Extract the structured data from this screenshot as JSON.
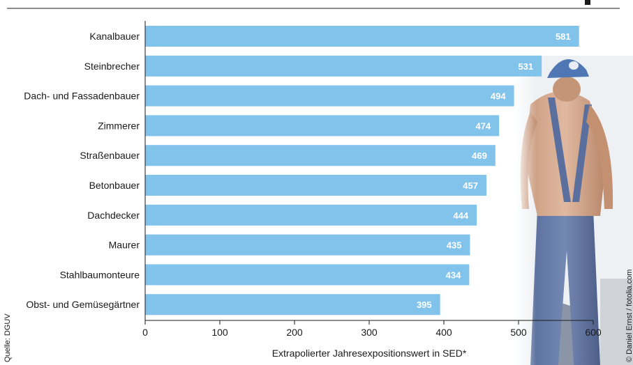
{
  "chart_data": {
    "type": "bar",
    "orientation": "horizontal",
    "categories": [
      "Kanalbauer",
      "Steinbrecher",
      "Dach- und Fassadenbauer",
      "Zimmerer",
      "Straßenbauer",
      "Betonbauer",
      "Dachdecker",
      "Maurer",
      "Stahlbaumonteure",
      "Obst- und Gemüsegärtner"
    ],
    "values": [
      581,
      531,
      494,
      474,
      469,
      457,
      444,
      435,
      434,
      395
    ],
    "xlabel": "Extrapolierter Jahresexpositionswert in SED*",
    "xlim": [
      0,
      600
    ],
    "xticks": [
      0,
      100,
      200,
      300,
      400,
      500,
      600
    ],
    "grid": false,
    "bar_color": "#82c3ec",
    "value_label_color": "#ffffff"
  },
  "source_note": "Quelle: DGUV",
  "photo_credit": "© Daniel Ernst / fotolia.com",
  "background_photo": "construction-worker-in-blue-overalls"
}
